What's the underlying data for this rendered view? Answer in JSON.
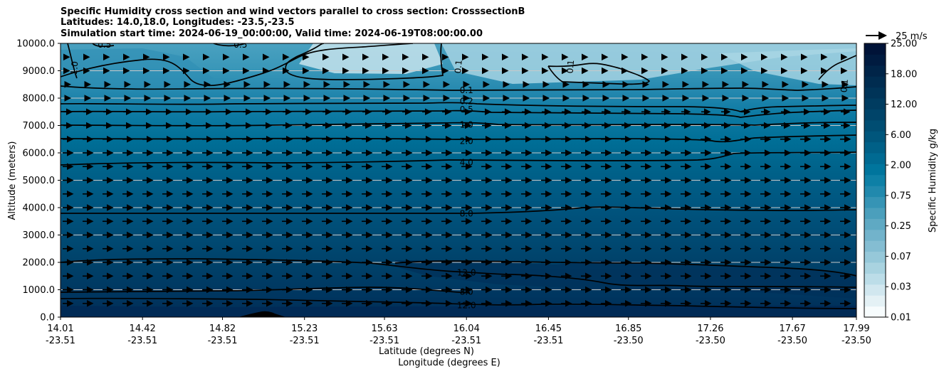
{
  "chart_data": {
    "type": "contour",
    "title": [
      "Specific Humidity cross section and wind vectors parallel to cross section: CrosssectionB",
      "Latitudes: 14.0,18.0, Longitudes: -23.5,-23.5",
      "Simulation start time: 2024-06-19_00:00:00, Valid time: 2024-06-19T08:00:00.00"
    ],
    "ylabel": "Altitude (meters)",
    "xlabel_lat": "Latitude (degrees N)",
    "xlabel_lon": "Longitude (degrees E)",
    "ylim": [
      0,
      10000
    ],
    "y_ticks": [
      "0.0",
      "1000.0",
      "2000.0",
      "3000.0",
      "4000.0",
      "5000.0",
      "6000.0",
      "7000.0",
      "8000.0",
      "9000.0",
      "10000.0"
    ],
    "x_ticks": [
      {
        "lat": "14.01",
        "lon": "-23.51"
      },
      {
        "lat": "14.42",
        "lon": "-23.51"
      },
      {
        "lat": "14.82",
        "lon": "-23.51"
      },
      {
        "lat": "15.23",
        "lon": "-23.51"
      },
      {
        "lat": "15.63",
        "lon": "-23.51"
      },
      {
        "lat": "16.04",
        "lon": "-23.51"
      },
      {
        "lat": "16.45",
        "lon": "-23.51"
      },
      {
        "lat": "16.85",
        "lon": "-23.50"
      },
      {
        "lat": "17.26",
        "lon": "-23.50"
      },
      {
        "lat": "17.67",
        "lon": "-23.50"
      },
      {
        "lat": "17.99",
        "lon": "-23.50"
      }
    ],
    "colorbar": {
      "label": "Specific Humidity g/kg",
      "levels": [
        0.01,
        0.02,
        0.03,
        0.05,
        0.07,
        0.1,
        0.25,
        0.35,
        0.5,
        0.75,
        1.0,
        1.5,
        2.0,
        3.0,
        4.0,
        5.0,
        6.0,
        8.0,
        10.0,
        12.0,
        15.0,
        18.0,
        20.0,
        22.0,
        25.0
      ],
      "tick_labels": [
        "0.01",
        "0.03",
        "0.07",
        "0.25",
        "0.75",
        "2.00",
        "6.00",
        "12.00",
        "18.00",
        "25.00"
      ],
      "colors": [
        "#f7fcfd",
        "#e4f1f5",
        "#d1e7ef",
        "#bcdde8",
        "#a9d3e0",
        "#96c8d9",
        "#84bdd2",
        "#72b3cb",
        "#5fa9c3",
        "#4b9fbc",
        "#3694b5",
        "#2189ad",
        "#0e80a6",
        "#00759d",
        "#006a92",
        "#006087",
        "#00567c",
        "#004d72",
        "#004469",
        "#003c60",
        "#003458",
        "#002c50",
        "#002448",
        "#001b40",
        "#001338"
      ]
    },
    "contour_labels": [
      {
        "text": "0.1",
        "x": 16.04,
        "y": 8280
      },
      {
        "text": "0.2",
        "x": 16.04,
        "y": 7880
      },
      {
        "text": "0.5",
        "x": 16.04,
        "y": 7580
      },
      {
        "text": "1.0",
        "x": 16.04,
        "y": 7030
      },
      {
        "text": "2.0",
        "x": 16.04,
        "y": 6430
      },
      {
        "text": "4.0",
        "x": 16.04,
        "y": 5650
      },
      {
        "text": "8.0",
        "x": 16.04,
        "y": 3780
      },
      {
        "text": "12.0",
        "x": 16.04,
        "y": 1620
      },
      {
        "text": "8.0",
        "x": 16.04,
        "y": 920
      },
      {
        "text": "12.0",
        "x": 16.04,
        "y": 430
      },
      {
        "text": "1.0",
        "x": 14.08,
        "y": 9100
      },
      {
        "text": "0.5",
        "x": 14.23,
        "y": 9950
      },
      {
        "text": "0.5",
        "x": 14.91,
        "y": 9950
      },
      {
        "text": "0.1",
        "x": 16.0,
        "y": 9150
      },
      {
        "text": "0.1",
        "x": 16.56,
        "y": 9150
      },
      {
        "text": "0.1",
        "x": 17.93,
        "y": 8450
      }
    ],
    "wind_reference": {
      "label": "25 m/s",
      "speed": 25
    }
  }
}
